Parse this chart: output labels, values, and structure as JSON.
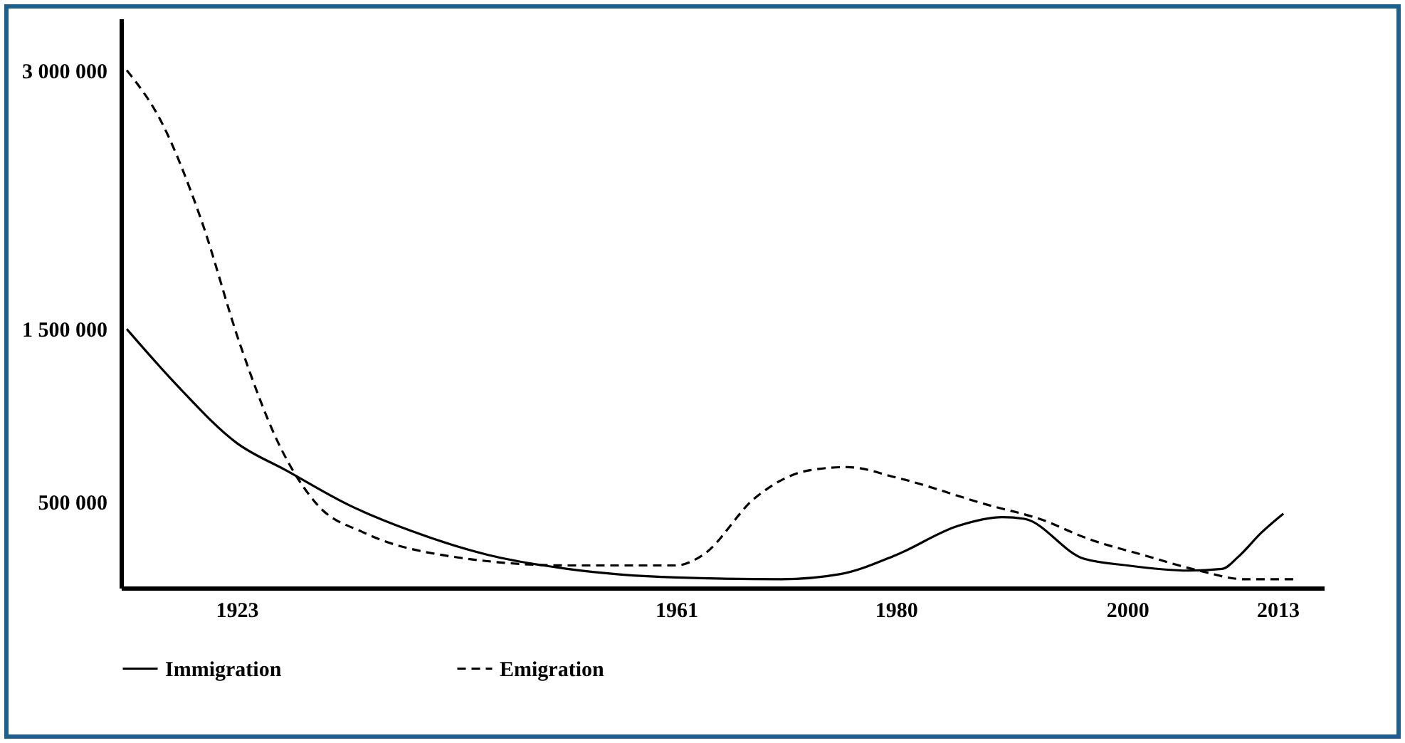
{
  "chart_data": {
    "type": "line",
    "xlim": [
      1913,
      2017
    ],
    "xticks": [
      1923,
      1961,
      1980,
      2000,
      2013
    ],
    "ylim": [
      0,
      3300000
    ],
    "yticks": [
      {
        "value": 500000,
        "label": "500 000"
      },
      {
        "value": 1500000,
        "label": "1 500 000"
      },
      {
        "value": 3000000,
        "label": "3 000 000"
      }
    ],
    "grid": false,
    "legend": "bottom",
    "series": [
      {
        "name": "Immigration",
        "color": "#000000",
        "line_style": "solid",
        "x": [
          1913.5,
          1917.9,
          1923,
          1927.3,
          1932.7,
          1938.1,
          1944.8,
          1951.6,
          1961,
          1970.1,
          1975.2,
          1980,
          1985.4,
          1989.2,
          1991.1,
          1996.2,
          2000,
          2005.3,
          2008.2,
          2009.6,
          2011.6,
          2013.5
        ],
        "values": [
          1500000,
          1170000,
          840000,
          680000,
          480000,
          330000,
          190000,
          110000,
          60000,
          50000,
          80000,
          190000,
          360000,
          410000,
          400000,
          170000,
          130000,
          100000,
          110000,
          180000,
          320000,
          430000
        ]
      },
      {
        "name": "Emigration",
        "color": "#000000",
        "line_style": "dashed",
        "x": [
          1913.5,
          1916.5,
          1919.9,
          1923.3,
          1926.6,
          1930,
          1934,
          1940.8,
          1951.6,
          1961,
          1963.3,
          1967.8,
          1972.4,
          1975.8,
          1980,
          1988,
          1992.4,
          1996.8,
          2001.4,
          2006.2,
          2010.1,
          2014.4
        ],
        "values": [
          3000000,
          2700000,
          2140000,
          1410000,
          840000,
          480000,
          320000,
          190000,
          130000,
          130000,
          190000,
          520000,
          680000,
          700000,
          640000,
          480000,
          400000,
          280000,
          190000,
          100000,
          50000,
          50000
        ]
      }
    ]
  }
}
